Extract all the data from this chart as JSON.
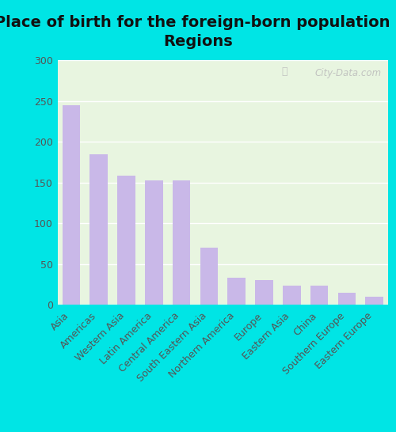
{
  "title": "Place of birth for the foreign-born population -\nRegions",
  "categories": [
    "Asia",
    "Americas",
    "Western Asia",
    "Latin America",
    "Central America",
    "South Eastern Asia",
    "Northern America",
    "Europe",
    "Eastern Asia",
    "China",
    "Southern Europe",
    "Eastern Europe"
  ],
  "values": [
    245,
    185,
    158,
    153,
    153,
    70,
    33,
    30,
    23,
    23,
    15,
    10
  ],
  "bar_color": "#c9b8e8",
  "background_color": "#e8f5e0",
  "outer_background": "#00e5e5",
  "ylim": [
    0,
    300
  ],
  "yticks": [
    0,
    50,
    100,
    150,
    200,
    250,
    300
  ],
  "title_fontsize": 14,
  "tick_label_fontsize": 9,
  "ytick_label_fontsize": 9,
  "watermark_text": "City-Data.com"
}
